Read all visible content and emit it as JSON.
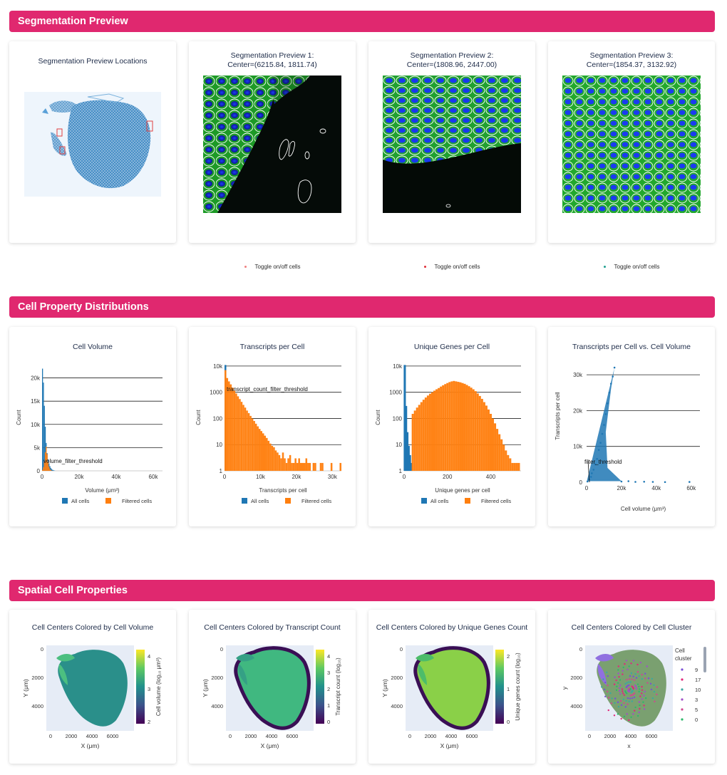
{
  "sections": {
    "segmentation": "Segmentation Preview",
    "distributions": "Cell Property Distributions",
    "spatial": "Spatial Cell Properties"
  },
  "segmentation": {
    "locations_title": "Segmentation Preview Locations",
    "previews": [
      {
        "title_line1": "Segmentation Preview 1:",
        "title_line2": "Center=(6215.84, 1811.74)",
        "toggle": "Toggle on/off cells",
        "dot_color": "#f08080"
      },
      {
        "title_line1": "Segmentation Preview 2:",
        "title_line2": "Center=(1808.96, 2447.00)",
        "toggle": "Toggle on/off cells",
        "dot_color": "#e0303a"
      },
      {
        "title_line1": "Segmentation Preview 3:",
        "title_line2": "Center=(1854.37, 3132.92)",
        "toggle": "Toggle on/off cells",
        "dot_color": "#20a090"
      }
    ]
  },
  "legend": {
    "all": "All cells",
    "filtered": "Filtered cells"
  },
  "colors": {
    "all": "#1f77b4",
    "filtered": "#ff7f0e",
    "banner": "#e0286f"
  },
  "chart_data": [
    {
      "type": "bar",
      "title": "Cell Volume",
      "xlabel": "Volume (μm³)",
      "ylabel": "Count",
      "xlim": [
        0,
        65000
      ],
      "ylim": [
        0,
        23000
      ],
      "x_ticks": [
        "0",
        "20k",
        "40k",
        "60k"
      ],
      "y_ticks": [
        "0",
        "5k",
        "10k",
        "15k",
        "20k"
      ],
      "annotation": "volume_filter_threshold",
      "series": [
        {
          "name": "All cells",
          "x": [
            250,
            750,
            1250,
            1750,
            2250,
            2750,
            3250,
            3750,
            4250,
            4750,
            5250,
            5750,
            6250,
            6750
          ],
          "values": [
            22000,
            19000,
            14000,
            9500,
            6000,
            3800,
            2500,
            1600,
            1000,
            600,
            350,
            200,
            100,
            50
          ]
        },
        {
          "name": "Filtered cells",
          "x": [
            250,
            750,
            1250,
            1750,
            2250,
            2750,
            3250,
            3750,
            4250,
            4750,
            5250
          ],
          "values": [
            200,
            800,
            2000,
            4000,
            5200,
            3600,
            1900,
            900,
            400,
            150,
            50
          ]
        }
      ]
    },
    {
      "type": "bar",
      "title": "Transcripts per Cell",
      "xlabel": "Transcripts per cell",
      "ylabel": "Count",
      "log_y": true,
      "xlim": [
        0,
        32500
      ],
      "ylim": [
        1,
        12000
      ],
      "x_ticks": [
        "0",
        "10k",
        "20k",
        "30k"
      ],
      "y_ticks": [
        "1",
        "10",
        "100",
        "1000",
        "10k"
      ],
      "annotation": "transcript_count_filter_threshold",
      "series": [
        {
          "name": "All cells",
          "x": [
            250
          ],
          "values": [
            11000
          ]
        },
        {
          "name": "Filtered cells",
          "x": [
            250,
            750,
            1250,
            1750,
            2250,
            2750,
            3250,
            3750,
            4250,
            4750,
            5250,
            5750,
            6250,
            6750,
            7250,
            7750,
            8250,
            8750,
            9250,
            9750,
            10250,
            10750,
            11250,
            11750,
            12250,
            12750,
            13250,
            13750,
            14250,
            14750,
            15250,
            15750,
            16250,
            16750,
            17250,
            17750,
            18250,
            18750,
            19250,
            19750,
            20250,
            20750,
            21250,
            21750,
            22250,
            22750,
            23250,
            23750,
            24250,
            24750,
            25250,
            25750,
            26250,
            26750,
            27250,
            27750,
            28250,
            28750,
            29250,
            29750,
            30250,
            30750,
            31250,
            31750,
            32250
          ],
          "values": [
            7000,
            3500,
            2600,
            2000,
            1500,
            1150,
            900,
            700,
            550,
            430,
            330,
            260,
            200,
            160,
            125,
            100,
            80,
            63,
            50,
            40,
            33,
            27,
            22,
            18,
            14,
            11,
            9,
            8,
            6,
            5,
            4,
            3,
            5,
            3,
            2,
            3,
            4,
            2,
            2,
            3,
            2,
            3,
            2,
            2,
            2,
            3,
            2,
            2,
            1,
            2,
            2,
            1,
            1,
            2,
            2,
            1,
            1,
            1,
            1,
            2,
            1,
            1,
            1,
            1,
            2
          ]
        }
      ]
    },
    {
      "type": "bar",
      "title": "Unique Genes per Cell",
      "xlabel": "Unique genes per cell",
      "ylabel": "Count",
      "log_y": true,
      "xlim": [
        0,
        540
      ],
      "ylim": [
        1,
        12000
      ],
      "x_ticks": [
        "0",
        "200",
        "400"
      ],
      "y_ticks": [
        "1",
        "10",
        "100",
        "1000",
        "10k"
      ],
      "series": [
        {
          "name": "All cells",
          "x": [
            3,
            9,
            15,
            21,
            27,
            33
          ],
          "values": [
            11000,
            300,
            30,
            9,
            4,
            2
          ]
        },
        {
          "name": "Filtered cells",
          "x": [
            40,
            50,
            60,
            70,
            80,
            90,
            100,
            110,
            120,
            130,
            140,
            150,
            160,
            170,
            180,
            190,
            200,
            210,
            220,
            230,
            240,
            250,
            260,
            270,
            280,
            290,
            300,
            310,
            320,
            330,
            340,
            350,
            360,
            370,
            380,
            390,
            400,
            410,
            420,
            430,
            440,
            450,
            460,
            470,
            480,
            490,
            500,
            510,
            520,
            530
          ],
          "values": [
            150,
            200,
            260,
            330,
            420,
            520,
            630,
            750,
            880,
            1000,
            1150,
            1300,
            1450,
            1650,
            1850,
            2050,
            2250,
            2450,
            2600,
            2700,
            2600,
            2500,
            2400,
            2250,
            2100,
            1900,
            1700,
            1500,
            1300,
            1100,
            900,
            720,
            560,
            420,
            310,
            220,
            150,
            100,
            65,
            40,
            25,
            16,
            10,
            6,
            4,
            3,
            2,
            2,
            2,
            2
          ]
        }
      ]
    },
    {
      "type": "scatter",
      "title": "Transcripts per Cell vs. Cell Volume",
      "xlabel": "Cell volume (μm³)",
      "ylabel": "Transcripts per cell",
      "xlim": [
        0,
        65000
      ],
      "ylim": [
        0,
        33000
      ],
      "x_ticks": [
        "0",
        "20k",
        "40k",
        "60k"
      ],
      "y_ticks": [
        "0",
        "10k",
        "20k",
        "30k"
      ],
      "annotation": "filter_threshold",
      "points": [
        [
          500,
          200
        ],
        [
          1500,
          800
        ],
        [
          2500,
          1500
        ],
        [
          3000,
          2500
        ],
        [
          4000,
          3500
        ],
        [
          5000,
          5000
        ],
        [
          6000,
          6500
        ],
        [
          7000,
          9000
        ],
        [
          8000,
          11000
        ],
        [
          9000,
          13500
        ],
        [
          10000,
          16000
        ],
        [
          11000,
          19000
        ],
        [
          12000,
          22000
        ],
        [
          13000,
          25000
        ],
        [
          14000,
          27500
        ],
        [
          15000,
          29500
        ],
        [
          16000,
          32000
        ],
        [
          20000,
          200
        ],
        [
          24000,
          300
        ],
        [
          28000,
          100
        ],
        [
          33000,
          150
        ],
        [
          38000,
          100
        ],
        [
          45000,
          50
        ],
        [
          59000,
          80
        ]
      ]
    },
    {
      "type": "scatter",
      "title": "Cell Centers Colored by Cell Volume",
      "xlabel": "X (μm)",
      "ylabel": "Y (μm)",
      "x_ticks": [
        "0",
        "2000",
        "4000",
        "6000"
      ],
      "y_ticks": [
        "0",
        "2000",
        "4000"
      ],
      "colorbar": {
        "label": "Cell volume (log₁₀ μm³)",
        "ticks": [
          "2",
          "3",
          "4"
        ]
      }
    },
    {
      "type": "scatter",
      "title": "Cell Centers Colored by Transcript Count",
      "xlabel": "X (μm)",
      "ylabel": "Y (μm)",
      "x_ticks": [
        "0",
        "2000",
        "4000",
        "6000"
      ],
      "y_ticks": [
        "0",
        "2000",
        "4000"
      ],
      "colorbar": {
        "label": "Transcript count (log₁₀)",
        "ticks": [
          "0",
          "1",
          "2",
          "3",
          "4"
        ]
      }
    },
    {
      "type": "scatter",
      "title": "Cell Centers Colored by Unique Genes Count",
      "xlabel": "X (μm)",
      "ylabel": "Y (μm)",
      "x_ticks": [
        "0",
        "2000",
        "4000",
        "6000"
      ],
      "y_ticks": [
        "0",
        "2000",
        "4000"
      ],
      "colorbar": {
        "label": "Unique genes count (log₁₀)",
        "ticks": [
          "0",
          "1",
          "2"
        ]
      }
    },
    {
      "type": "scatter",
      "title": "Cell Centers Colored by Cell Cluster",
      "xlabel": "x",
      "ylabel": "y",
      "x_ticks": [
        "0",
        "2000",
        "4000",
        "6000"
      ],
      "y_ticks": [
        "0",
        "2000",
        "4000"
      ],
      "legend_title": "Cell cluster",
      "clusters": [
        {
          "name": "9",
          "color": "#7a4fd6"
        },
        {
          "name": "17",
          "color": "#e0287a"
        },
        {
          "name": "10",
          "color": "#3aa8a0"
        },
        {
          "name": "3",
          "color": "#a050c8"
        },
        {
          "name": "5",
          "color": "#d04890"
        },
        {
          "name": "0",
          "color": "#2cb86a"
        }
      ]
    }
  ]
}
